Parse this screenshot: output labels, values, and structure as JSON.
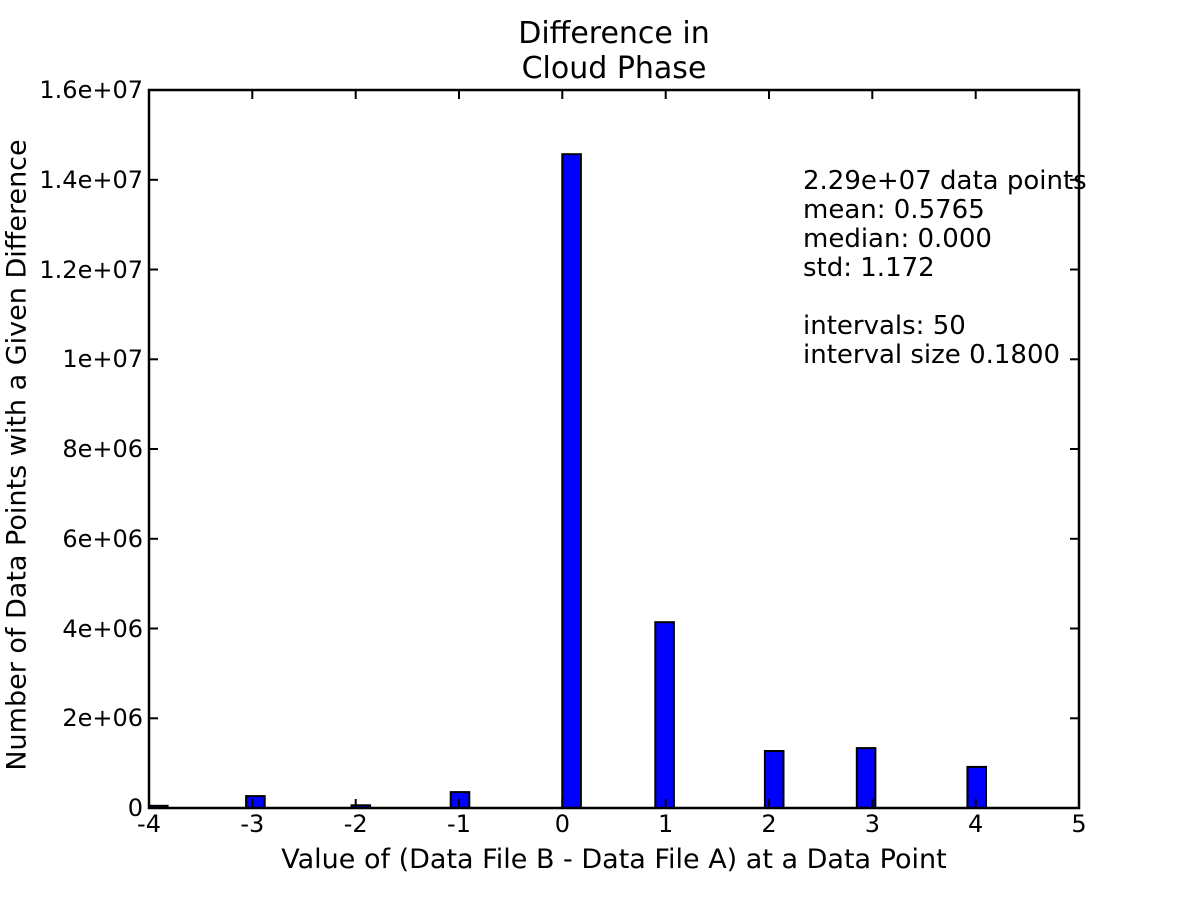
{
  "chart_data": {
    "type": "bar",
    "title": "Difference in Cloud Phase",
    "title_lines": [
      "Difference in",
      "Cloud Phase"
    ],
    "xlabel": "Value of (Data File B - Data File A) at a Data Point",
    "ylabel": "Number of Data Points with a Given Difference",
    "xlim": [
      -4,
      5
    ],
    "ylim": [
      0,
      16000000
    ],
    "grid": false,
    "legend": "none",
    "bar_width": 0.18,
    "bars": [
      {
        "x": -3.91,
        "value": 50000
      },
      {
        "x": -2.97,
        "value": 265000
      },
      {
        "x": -1.95,
        "value": 60000
      },
      {
        "x": -0.99,
        "value": 355000
      },
      {
        "x": 0.09,
        "value": 14570000
      },
      {
        "x": 0.99,
        "value": 4140000
      },
      {
        "x": 2.05,
        "value": 1270000
      },
      {
        "x": 2.94,
        "value": 1335000
      },
      {
        "x": 4.01,
        "value": 915000
      }
    ],
    "x_ticks": [
      {
        "value": -4,
        "label": "-4"
      },
      {
        "value": -3,
        "label": "-3"
      },
      {
        "value": -2,
        "label": "-2"
      },
      {
        "value": -1,
        "label": "-1"
      },
      {
        "value": 0,
        "label": "0"
      },
      {
        "value": 1,
        "label": "1"
      },
      {
        "value": 2,
        "label": "2"
      },
      {
        "value": 3,
        "label": "3"
      },
      {
        "value": 4,
        "label": "4"
      },
      {
        "value": 5,
        "label": "5"
      }
    ],
    "y_ticks": [
      {
        "value": 0,
        "label": "0"
      },
      {
        "value": 2000000,
        "label": "2e+06"
      },
      {
        "value": 4000000,
        "label": "4e+06"
      },
      {
        "value": 6000000,
        "label": "6e+06"
      },
      {
        "value": 8000000,
        "label": "8e+06"
      },
      {
        "value": 10000000,
        "label": "1e+07"
      },
      {
        "value": 12000000,
        "label": "1.2e+07"
      },
      {
        "value": 14000000,
        "label": "1.4e+07"
      },
      {
        "value": 16000000,
        "label": "1.6e+07"
      }
    ],
    "annotation": {
      "lines": [
        "2.29e+07 data points",
        "mean: 0.5765",
        "median: 0.000",
        "std: 1.172",
        "",
        "intervals: 50",
        "interval size 0.1800"
      ]
    },
    "stats": {
      "data_points": "2.29e+07",
      "mean": 0.5765,
      "median": 0.0,
      "std": 1.172,
      "intervals": 50,
      "interval_size": 0.18
    },
    "colors": {
      "bar_fill": "#0000ff",
      "bar_edge": "#000000",
      "axis": "#000000",
      "text": "#000000",
      "background": "#ffffff"
    }
  }
}
